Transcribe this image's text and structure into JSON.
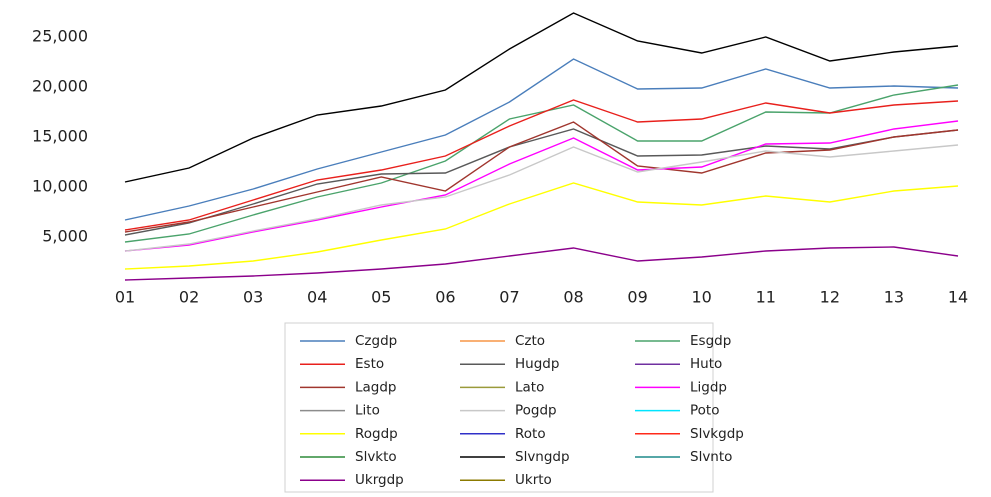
{
  "chart_data": {
    "type": "line",
    "categories": [
      "01",
      "02",
      "03",
      "04",
      "05",
      "06",
      "07",
      "08",
      "09",
      "10",
      "11",
      "12",
      "13",
      "14"
    ],
    "ylim": [
      0,
      28000
    ],
    "yticks": [
      {
        "value": 5000,
        "label": "5,000"
      },
      {
        "value": 10000,
        "label": "10,000"
      },
      {
        "value": 15000,
        "label": "15,000"
      },
      {
        "value": 20000,
        "label": "20,000"
      },
      {
        "value": 25000,
        "label": "25,000"
      }
    ],
    "grid": false,
    "series": [
      {
        "name": "Czgdp",
        "color": "#4a7ebb",
        "values": [
          6700,
          8100,
          9800,
          11800,
          13500,
          15200,
          18500,
          22800,
          19800,
          19900,
          21800,
          19900,
          20100,
          19900
        ]
      },
      {
        "name": "Czto",
        "color": "#f79646",
        "values": [
          null,
          null,
          null,
          null,
          null,
          null,
          null,
          null,
          null,
          null,
          null,
          null,
          null,
          null
        ]
      },
      {
        "name": "Esgdp",
        "color": "#4aa36b",
        "values": [
          4500,
          5300,
          7200,
          9000,
          10400,
          12600,
          16800,
          18200,
          14600,
          14600,
          17500,
          17400,
          19200,
          20200
        ]
      },
      {
        "name": "Esto",
        "color": "#e8201c",
        "values": [
          5700,
          6700,
          8700,
          10700,
          11700,
          13100,
          16100,
          18700,
          16500,
          16800,
          18400,
          17400,
          18200,
          18600
        ]
      },
      {
        "name": "Hugdp",
        "color": "#595959",
        "values": [
          5200,
          6400,
          8300,
          10300,
          11300,
          11400,
          14000,
          15800,
          13100,
          13200,
          14100,
          13800,
          15000,
          15700
        ]
      },
      {
        "name": "Huto",
        "color": "#7030a0",
        "values": [
          null,
          null,
          null,
          null,
          null,
          null,
          null,
          null,
          null,
          null,
          null,
          null,
          null,
          null
        ]
      },
      {
        "name": "Lagdp",
        "color": "#a0362e",
        "values": [
          5500,
          6500,
          8000,
          9500,
          11000,
          9600,
          14000,
          16500,
          12100,
          11400,
          13400,
          13700,
          15000,
          15700
        ]
      },
      {
        "name": "Lato",
        "color": "#9a9a3a",
        "values": [
          null,
          null,
          null,
          null,
          null,
          null,
          null,
          null,
          null,
          null,
          null,
          null,
          null,
          null
        ]
      },
      {
        "name": "Ligdp",
        "color": "#ff00ff",
        "values": [
          3600,
          4200,
          5500,
          6700,
          8000,
          9200,
          12300,
          14900,
          11700,
          12000,
          14300,
          14400,
          15800,
          16600
        ]
      },
      {
        "name": "Lito",
        "color": "#8c8c8c",
        "values": [
          null,
          null,
          null,
          null,
          null,
          null,
          null,
          null,
          null,
          null,
          null,
          null,
          null,
          null
        ]
      },
      {
        "name": "Pogdp",
        "color": "#c8c8c8",
        "values": [
          3600,
          4300,
          5600,
          6800,
          8200,
          9000,
          11200,
          14000,
          11500,
          12500,
          13600,
          13000,
          13600,
          14200
        ]
      },
      {
        "name": "Poto",
        "color": "#00e5ff",
        "values": [
          null,
          null,
          null,
          null,
          null,
          null,
          null,
          null,
          null,
          null,
          null,
          null,
          null,
          null
        ]
      },
      {
        "name": "Rogdp",
        "color": "#ffff00",
        "values": [
          1800,
          2100,
          2600,
          3500,
          4700,
          5800,
          8300,
          10400,
          8500,
          8200,
          9100,
          8500,
          9600,
          10100
        ]
      },
      {
        "name": "Roto",
        "color": "#3030c8",
        "values": [
          null,
          null,
          null,
          null,
          null,
          null,
          null,
          null,
          null,
          null,
          null,
          null,
          null,
          null
        ]
      },
      {
        "name": "Slvkgdp",
        "color": "#ff2a1a",
        "values": [
          null,
          null,
          null,
          null,
          null,
          null,
          null,
          null,
          null,
          null,
          null,
          null,
          null,
          null
        ]
      },
      {
        "name": "Slvkto",
        "color": "#2e8b3a",
        "values": [
          null,
          null,
          null,
          null,
          null,
          null,
          null,
          null,
          null,
          null,
          null,
          null,
          null,
          null
        ]
      },
      {
        "name": "Slvngdp",
        "color": "#000000",
        "values": [
          10500,
          11900,
          14900,
          17200,
          18100,
          19700,
          23800,
          27400,
          24600,
          23400,
          25000,
          22600,
          23500,
          24100
        ]
      },
      {
        "name": "Slvnto",
        "color": "#1f8a8a",
        "values": [
          null,
          null,
          null,
          null,
          null,
          null,
          null,
          null,
          null,
          null,
          null,
          null,
          null,
          null
        ]
      },
      {
        "name": "Ukrgdp",
        "color": "#8b008b",
        "values": [
          700,
          900,
          1100,
          1400,
          1800,
          2300,
          3100,
          3900,
          2600,
          3000,
          3600,
          3900,
          4000,
          3100
        ]
      },
      {
        "name": "Ukrto",
        "color": "#8b7a00",
        "values": [
          null,
          null,
          null,
          null,
          null,
          null,
          null,
          null,
          null,
          null,
          null,
          null,
          null,
          null
        ]
      }
    ]
  }
}
